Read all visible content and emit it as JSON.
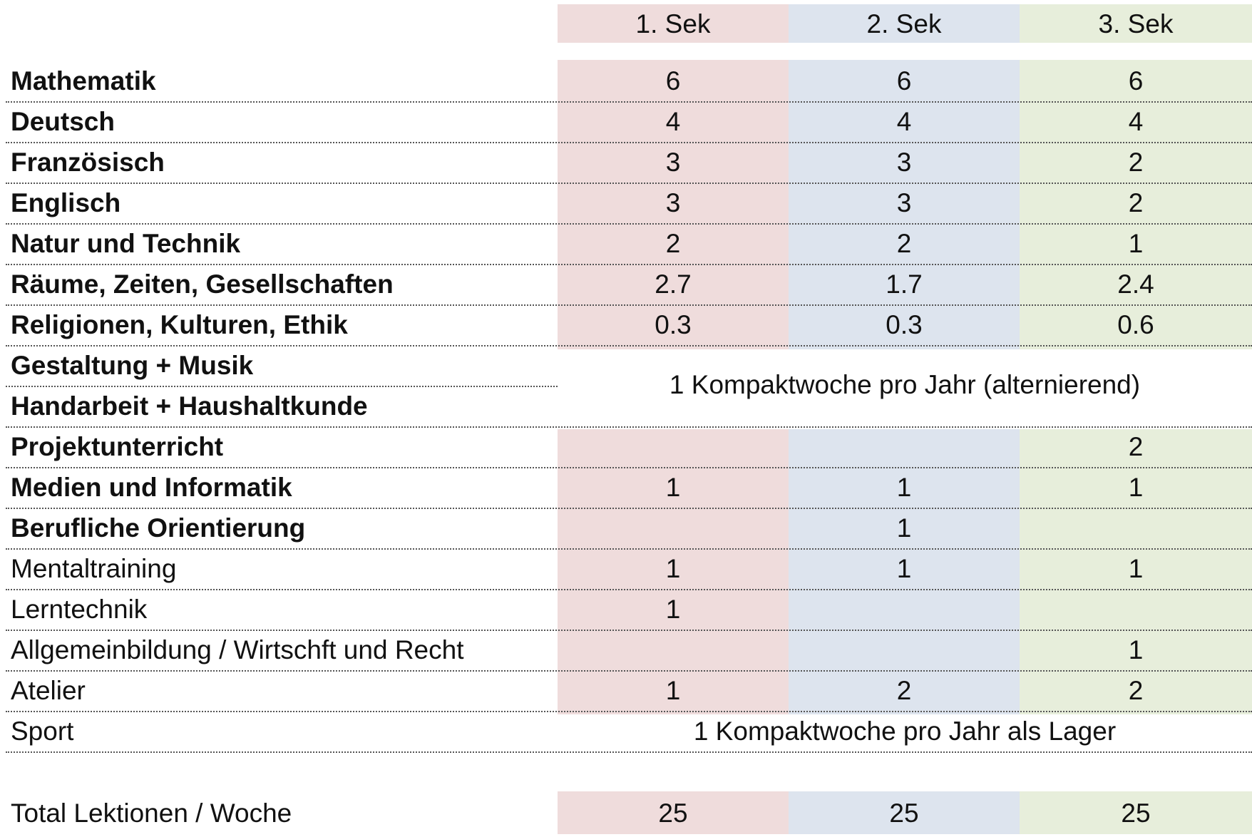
{
  "colors": {
    "col1": "#efdcdc",
    "col2": "#dde4ee",
    "col3": "#e7eedb"
  },
  "header": [
    "1. Sek",
    "2. Sek",
    "3. Sek"
  ],
  "rows": [
    {
      "label": "Mathematik",
      "v1": "6",
      "v2": "6",
      "v3": "6"
    },
    {
      "label": "Deutsch",
      "v1": "4",
      "v2": "4",
      "v3": "4"
    },
    {
      "label": "Französisch",
      "v1": "3",
      "v2": "3",
      "v3": "2"
    },
    {
      "label": "Englisch",
      "v1": "3",
      "v2": "3",
      "v3": "2"
    },
    {
      "label": "Natur und Technik",
      "v1": "2",
      "v2": "2",
      "v3": "1"
    },
    {
      "label": "Räume, Zeiten, Gesellschaften",
      "v1": "2.7",
      "v2": "1.7",
      "v3": "2.4"
    },
    {
      "label": "Religionen, Kulturen, Ethik",
      "v1": "0.3",
      "v2": "0.3",
      "v3": "0.6"
    },
    {
      "label": "Gestaltung + Musik"
    },
    {
      "label": "Handarbeit + Haushaltkunde"
    },
    {
      "label": "Projektunterricht",
      "v1": "",
      "v2": "",
      "v3": "2"
    },
    {
      "label": "Medien und Informatik",
      "v1": "1",
      "v2": "1",
      "v3": "1"
    },
    {
      "label": "Berufliche Orientierung",
      "v1": "",
      "v2": "1",
      "v3": ""
    },
    {
      "label": "Mentaltraining",
      "v1": "1",
      "v2": "1",
      "v3": "1"
    },
    {
      "label": "Lerntechnik",
      "v1": "1",
      "v2": "",
      "v3": ""
    },
    {
      "label": "Allgemeinbildung / Wirtschft und Recht",
      "v1": "",
      "v2": "",
      "v3": "1"
    },
    {
      "label": "Atelier",
      "v1": "1",
      "v2": "2",
      "v3": "2"
    },
    {
      "label": "Sport"
    }
  ],
  "kompaktwoche_text": "1 Kompaktwoche pro Jahr (alternierend)",
  "sport_text": "1 Kompaktwoche pro Jahr als Lager",
  "total": {
    "label": "Total Lektionen / Woche",
    "v1": "25",
    "v2": "25",
    "v3": "25"
  }
}
